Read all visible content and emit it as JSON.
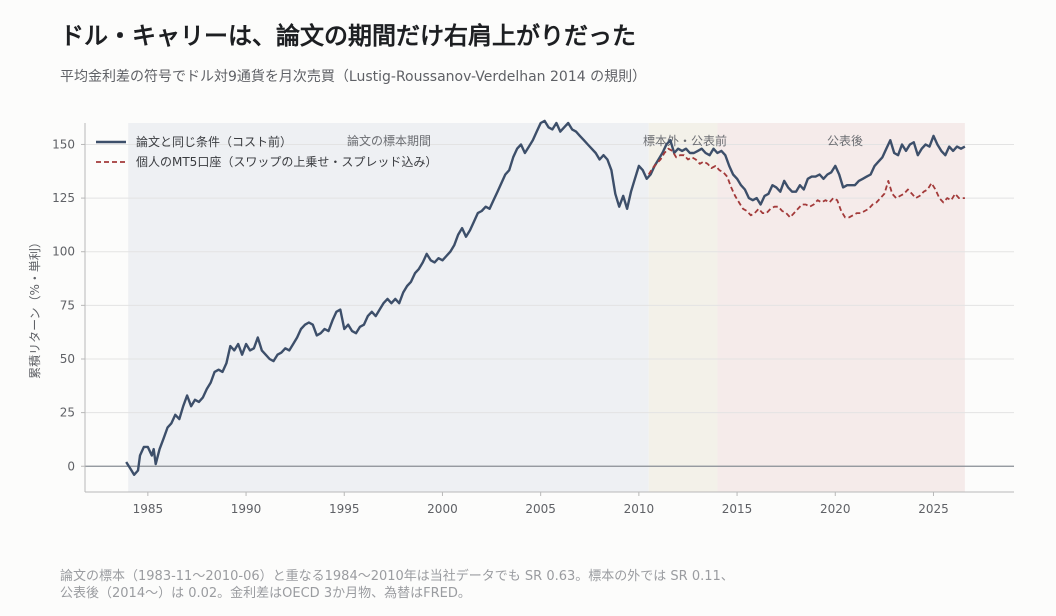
{
  "title": "ドル・キャリーは、論文の期間だけ右肩上がりだった",
  "subtitle": "平均金利差の符号でドル対9通貨を月次売買（Lustig-Roussanov-Verdelhan 2014 の規則）",
  "footnote": {
    "line1": "論文の標本（1983-11〜2010-06）と重なる1984〜2010年は当社データでも SR 0.63。標本の外では SR 0.11、",
    "line2": "公表後（2014〜）は 0.02。金利差はOECD 3か月物、為替はFRED。"
  },
  "colors": {
    "paper": "#3d4f6a",
    "retail": "#a33a3a",
    "region_in": "#eef0f3",
    "region_out": "#f3f1e9",
    "region_post": "#f5ebea"
  },
  "chart_data": {
    "type": "line",
    "ylabel": "累積リターン（%・単利）",
    "ylim": [
      -12,
      160
    ],
    "xlim": [
      1981.8,
      2029.1
    ],
    "x_ticks": [
      1985,
      1990,
      1995,
      2000,
      2005,
      2010,
      2015,
      2020,
      2025
    ],
    "y_ticks": [
      0,
      25,
      50,
      75,
      100,
      125,
      150
    ],
    "grid": true,
    "legend_position": "top-left",
    "regions": [
      {
        "label": "論文の標本期間",
        "start": 1984.0,
        "end": 2010.5
      },
      {
        "label": "標本外・公表前",
        "start": 2010.5,
        "end": 2014.0
      },
      {
        "label": "公表後",
        "start": 2014.0,
        "end": 2026.6
      }
    ],
    "series": [
      {
        "name": "論文と同じ条件（コスト前）",
        "style": "solid",
        "points": [
          [
            1983.9,
            2
          ],
          [
            1984.1,
            -1
          ],
          [
            1984.3,
            -4
          ],
          [
            1984.5,
            -2
          ],
          [
            1984.6,
            5
          ],
          [
            1984.8,
            9
          ],
          [
            1985.0,
            9
          ],
          [
            1985.2,
            5
          ],
          [
            1985.3,
            8
          ],
          [
            1985.4,
            1
          ],
          [
            1985.6,
            8
          ],
          [
            1985.8,
            13
          ],
          [
            1986.0,
            18
          ],
          [
            1986.2,
            20
          ],
          [
            1986.4,
            24
          ],
          [
            1986.6,
            22
          ],
          [
            1986.8,
            28
          ],
          [
            1987.0,
            33
          ],
          [
            1987.2,
            28
          ],
          [
            1987.4,
            31
          ],
          [
            1987.6,
            30
          ],
          [
            1987.8,
            32
          ],
          [
            1988.0,
            36
          ],
          [
            1988.2,
            39
          ],
          [
            1988.4,
            44
          ],
          [
            1988.6,
            45
          ],
          [
            1988.8,
            44
          ],
          [
            1989.0,
            48
          ],
          [
            1989.2,
            56
          ],
          [
            1989.4,
            54
          ],
          [
            1989.6,
            57
          ],
          [
            1989.8,
            52
          ],
          [
            1990.0,
            57
          ],
          [
            1990.2,
            54
          ],
          [
            1990.4,
            55
          ],
          [
            1990.6,
            60
          ],
          [
            1990.8,
            54
          ],
          [
            1991.0,
            52
          ],
          [
            1991.2,
            50
          ],
          [
            1991.4,
            49
          ],
          [
            1991.6,
            52
          ],
          [
            1991.8,
            53
          ],
          [
            1992.0,
            55
          ],
          [
            1992.2,
            54
          ],
          [
            1992.4,
            57
          ],
          [
            1992.6,
            60
          ],
          [
            1992.8,
            64
          ],
          [
            1993.0,
            66
          ],
          [
            1993.2,
            67
          ],
          [
            1993.4,
            66
          ],
          [
            1993.6,
            61
          ],
          [
            1993.8,
            62
          ],
          [
            1994.0,
            64
          ],
          [
            1994.2,
            63
          ],
          [
            1994.4,
            68
          ],
          [
            1994.6,
            72
          ],
          [
            1994.8,
            73
          ],
          [
            1995.0,
            64
          ],
          [
            1995.2,
            66
          ],
          [
            1995.4,
            63
          ],
          [
            1995.6,
            62
          ],
          [
            1995.8,
            65
          ],
          [
            1996.0,
            66
          ],
          [
            1996.2,
            70
          ],
          [
            1996.4,
            72
          ],
          [
            1996.6,
            70
          ],
          [
            1996.8,
            73
          ],
          [
            1997.0,
            76
          ],
          [
            1997.2,
            78
          ],
          [
            1997.4,
            76
          ],
          [
            1997.6,
            78
          ],
          [
            1997.8,
            76
          ],
          [
            1998.0,
            81
          ],
          [
            1998.2,
            84
          ],
          [
            1998.4,
            86
          ],
          [
            1998.6,
            90
          ],
          [
            1998.8,
            92
          ],
          [
            1999.0,
            95
          ],
          [
            1999.2,
            99
          ],
          [
            1999.4,
            96
          ],
          [
            1999.6,
            95
          ],
          [
            1999.8,
            97
          ],
          [
            2000.0,
            96
          ],
          [
            2000.2,
            98
          ],
          [
            2000.4,
            100
          ],
          [
            2000.6,
            103
          ],
          [
            2000.8,
            108
          ],
          [
            2001.0,
            111
          ],
          [
            2001.2,
            107
          ],
          [
            2001.4,
            110
          ],
          [
            2001.6,
            114
          ],
          [
            2001.8,
            118
          ],
          [
            2002.0,
            119
          ],
          [
            2002.2,
            121
          ],
          [
            2002.4,
            120
          ],
          [
            2002.6,
            124
          ],
          [
            2002.8,
            128
          ],
          [
            2003.0,
            132
          ],
          [
            2003.2,
            136
          ],
          [
            2003.4,
            138
          ],
          [
            2003.6,
            144
          ],
          [
            2003.8,
            148
          ],
          [
            2004.0,
            150
          ],
          [
            2004.2,
            146
          ],
          [
            2004.4,
            149
          ],
          [
            2004.6,
            152
          ],
          [
            2004.8,
            156
          ],
          [
            2005.0,
            160
          ],
          [
            2005.2,
            161
          ],
          [
            2005.4,
            158
          ],
          [
            2005.6,
            157
          ],
          [
            2005.8,
            160
          ],
          [
            2006.0,
            156
          ],
          [
            2006.2,
            158
          ],
          [
            2006.4,
            160
          ],
          [
            2006.6,
            157
          ],
          [
            2006.8,
            156
          ],
          [
            2007.0,
            154
          ],
          [
            2007.2,
            152
          ],
          [
            2007.4,
            150
          ],
          [
            2007.6,
            148
          ],
          [
            2007.8,
            146
          ],
          [
            2008.0,
            143
          ],
          [
            2008.2,
            145
          ],
          [
            2008.4,
            143
          ],
          [
            2008.6,
            138
          ],
          [
            2008.8,
            127
          ],
          [
            2009.0,
            121
          ],
          [
            2009.2,
            126
          ],
          [
            2009.4,
            120
          ],
          [
            2009.6,
            128
          ],
          [
            2009.8,
            134
          ],
          [
            2010.0,
            140
          ],
          [
            2010.2,
            138
          ],
          [
            2010.4,
            134
          ],
          [
            2010.6,
            136
          ],
          [
            2010.8,
            140
          ],
          [
            2011.0,
            143
          ],
          [
            2011.2,
            146
          ],
          [
            2011.4,
            150
          ],
          [
            2011.6,
            152
          ],
          [
            2011.8,
            146
          ],
          [
            2012.0,
            148
          ],
          [
            2012.2,
            147
          ],
          [
            2012.4,
            148
          ],
          [
            2012.6,
            146
          ],
          [
            2012.8,
            146
          ],
          [
            2013.0,
            147
          ],
          [
            2013.2,
            148
          ],
          [
            2013.4,
            146
          ],
          [
            2013.6,
            145
          ],
          [
            2013.8,
            148
          ],
          [
            2014.0,
            146
          ],
          [
            2014.2,
            147
          ],
          [
            2014.4,
            145
          ],
          [
            2014.6,
            140
          ],
          [
            2014.8,
            136
          ],
          [
            2015.0,
            134
          ],
          [
            2015.2,
            131
          ],
          [
            2015.4,
            129
          ],
          [
            2015.6,
            125
          ],
          [
            2015.8,
            124
          ],
          [
            2016.0,
            125
          ],
          [
            2016.2,
            122
          ],
          [
            2016.4,
            126
          ],
          [
            2016.6,
            127
          ],
          [
            2016.8,
            131
          ],
          [
            2017.0,
            130
          ],
          [
            2017.2,
            128
          ],
          [
            2017.4,
            133
          ],
          [
            2017.6,
            130
          ],
          [
            2017.8,
            128
          ],
          [
            2018.0,
            128
          ],
          [
            2018.2,
            131
          ],
          [
            2018.4,
            129
          ],
          [
            2018.6,
            134
          ],
          [
            2018.8,
            135
          ],
          [
            2019.0,
            135
          ],
          [
            2019.2,
            136
          ],
          [
            2019.4,
            134
          ],
          [
            2019.6,
            136
          ],
          [
            2019.8,
            137
          ],
          [
            2020.0,
            140
          ],
          [
            2020.2,
            136
          ],
          [
            2020.4,
            130
          ],
          [
            2020.6,
            131
          ],
          [
            2020.8,
            131
          ],
          [
            2021.0,
            131
          ],
          [
            2021.2,
            133
          ],
          [
            2021.4,
            134
          ],
          [
            2021.6,
            135
          ],
          [
            2021.8,
            136
          ],
          [
            2022.0,
            140
          ],
          [
            2022.2,
            142
          ],
          [
            2022.4,
            144
          ],
          [
            2022.6,
            148
          ],
          [
            2022.8,
            152
          ],
          [
            2023.0,
            146
          ],
          [
            2023.2,
            145
          ],
          [
            2023.4,
            150
          ],
          [
            2023.6,
            147
          ],
          [
            2023.8,
            150
          ],
          [
            2024.0,
            151
          ],
          [
            2024.2,
            145
          ],
          [
            2024.4,
            148
          ],
          [
            2024.6,
            150
          ],
          [
            2024.8,
            149
          ],
          [
            2025.0,
            154
          ],
          [
            2025.2,
            150
          ],
          [
            2025.4,
            147
          ],
          [
            2025.6,
            145
          ],
          [
            2025.8,
            149
          ],
          [
            2026.0,
            147
          ],
          [
            2026.2,
            149
          ],
          [
            2026.4,
            148
          ],
          [
            2026.6,
            149
          ]
        ]
      },
      {
        "name": "個人のMT5口座（スワップの上乗せ・スプレッド込み）",
        "style": "dashed",
        "points": [
          [
            2010.5,
            136
          ],
          [
            2010.7,
            139
          ],
          [
            2010.9,
            141
          ],
          [
            2011.1,
            143
          ],
          [
            2011.3,
            146
          ],
          [
            2011.5,
            148
          ],
          [
            2011.7,
            147
          ],
          [
            2011.9,
            144
          ],
          [
            2012.1,
            145
          ],
          [
            2012.3,
            145
          ],
          [
            2012.5,
            143
          ],
          [
            2012.7,
            144
          ],
          [
            2012.9,
            143
          ],
          [
            2013.1,
            141
          ],
          [
            2013.3,
            142
          ],
          [
            2013.5,
            141
          ],
          [
            2013.7,
            139
          ],
          [
            2013.9,
            140
          ],
          [
            2014.1,
            138
          ],
          [
            2014.3,
            137
          ],
          [
            2014.5,
            135
          ],
          [
            2014.7,
            130
          ],
          [
            2014.9,
            126
          ],
          [
            2015.1,
            123
          ],
          [
            2015.3,
            120
          ],
          [
            2015.5,
            119
          ],
          [
            2015.7,
            117
          ],
          [
            2015.9,
            118
          ],
          [
            2016.1,
            120
          ],
          [
            2016.3,
            118
          ],
          [
            2016.5,
            118
          ],
          [
            2016.7,
            120
          ],
          [
            2016.9,
            121
          ],
          [
            2017.1,
            121
          ],
          [
            2017.3,
            119
          ],
          [
            2017.5,
            118
          ],
          [
            2017.7,
            116
          ],
          [
            2017.9,
            118
          ],
          [
            2018.1,
            120
          ],
          [
            2018.3,
            122
          ],
          [
            2018.5,
            122
          ],
          [
            2018.7,
            121
          ],
          [
            2018.9,
            122
          ],
          [
            2019.1,
            124
          ],
          [
            2019.3,
            123
          ],
          [
            2019.5,
            124
          ],
          [
            2019.7,
            123
          ],
          [
            2019.9,
            125
          ],
          [
            2020.1,
            124
          ],
          [
            2020.3,
            119
          ],
          [
            2020.5,
            116
          ],
          [
            2020.7,
            116
          ],
          [
            2020.9,
            117
          ],
          [
            2021.1,
            118
          ],
          [
            2021.3,
            118
          ],
          [
            2021.5,
            119
          ],
          [
            2021.7,
            120
          ],
          [
            2021.9,
            122
          ],
          [
            2022.1,
            123
          ],
          [
            2022.3,
            125
          ],
          [
            2022.5,
            127
          ],
          [
            2022.7,
            133
          ],
          [
            2022.9,
            127
          ],
          [
            2023.1,
            125
          ],
          [
            2023.3,
            126
          ],
          [
            2023.5,
            127
          ],
          [
            2023.7,
            129
          ],
          [
            2023.9,
            127
          ],
          [
            2024.1,
            125
          ],
          [
            2024.3,
            126
          ],
          [
            2024.5,
            128
          ],
          [
            2024.7,
            129
          ],
          [
            2024.9,
            132
          ],
          [
            2025.1,
            129
          ],
          [
            2025.3,
            125
          ],
          [
            2025.5,
            123
          ],
          [
            2025.7,
            125
          ],
          [
            2025.9,
            124
          ],
          [
            2026.1,
            127
          ],
          [
            2026.3,
            125
          ],
          [
            2026.6,
            125
          ]
        ]
      }
    ]
  }
}
